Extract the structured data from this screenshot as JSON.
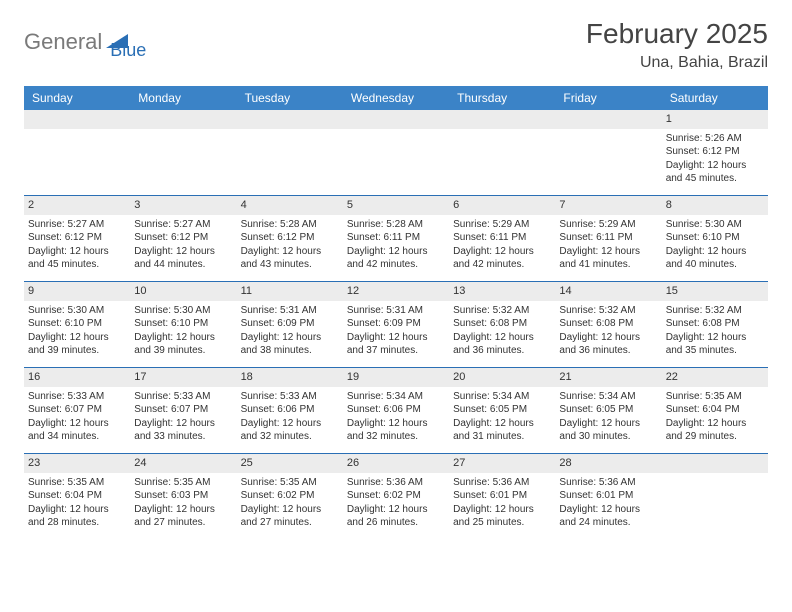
{
  "logo": {
    "gray": "General",
    "blue": "Blue"
  },
  "title": "February 2025",
  "location": "Una, Bahia, Brazil",
  "colors": {
    "header_bg": "#3b83c7",
    "header_text": "#ffffff",
    "daynum_bg": "#ececec",
    "week_border": "#2a6fb5",
    "logo_gray": "#7a7a7a",
    "logo_blue": "#2a6fb5"
  },
  "weekdays": [
    "Sunday",
    "Monday",
    "Tuesday",
    "Wednesday",
    "Thursday",
    "Friday",
    "Saturday"
  ],
  "weeks": [
    [
      null,
      null,
      null,
      null,
      null,
      null,
      {
        "n": "1",
        "sr": "5:26 AM",
        "ss": "6:12 PM",
        "dl": "12 hours and 45 minutes."
      }
    ],
    [
      {
        "n": "2",
        "sr": "5:27 AM",
        "ss": "6:12 PM",
        "dl": "12 hours and 45 minutes."
      },
      {
        "n": "3",
        "sr": "5:27 AM",
        "ss": "6:12 PM",
        "dl": "12 hours and 44 minutes."
      },
      {
        "n": "4",
        "sr": "5:28 AM",
        "ss": "6:12 PM",
        "dl": "12 hours and 43 minutes."
      },
      {
        "n": "5",
        "sr": "5:28 AM",
        "ss": "6:11 PM",
        "dl": "12 hours and 42 minutes."
      },
      {
        "n": "6",
        "sr": "5:29 AM",
        "ss": "6:11 PM",
        "dl": "12 hours and 42 minutes."
      },
      {
        "n": "7",
        "sr": "5:29 AM",
        "ss": "6:11 PM",
        "dl": "12 hours and 41 minutes."
      },
      {
        "n": "8",
        "sr": "5:30 AM",
        "ss": "6:10 PM",
        "dl": "12 hours and 40 minutes."
      }
    ],
    [
      {
        "n": "9",
        "sr": "5:30 AM",
        "ss": "6:10 PM",
        "dl": "12 hours and 39 minutes."
      },
      {
        "n": "10",
        "sr": "5:30 AM",
        "ss": "6:10 PM",
        "dl": "12 hours and 39 minutes."
      },
      {
        "n": "11",
        "sr": "5:31 AM",
        "ss": "6:09 PM",
        "dl": "12 hours and 38 minutes."
      },
      {
        "n": "12",
        "sr": "5:31 AM",
        "ss": "6:09 PM",
        "dl": "12 hours and 37 minutes."
      },
      {
        "n": "13",
        "sr": "5:32 AM",
        "ss": "6:08 PM",
        "dl": "12 hours and 36 minutes."
      },
      {
        "n": "14",
        "sr": "5:32 AM",
        "ss": "6:08 PM",
        "dl": "12 hours and 36 minutes."
      },
      {
        "n": "15",
        "sr": "5:32 AM",
        "ss": "6:08 PM",
        "dl": "12 hours and 35 minutes."
      }
    ],
    [
      {
        "n": "16",
        "sr": "5:33 AM",
        "ss": "6:07 PM",
        "dl": "12 hours and 34 minutes."
      },
      {
        "n": "17",
        "sr": "5:33 AM",
        "ss": "6:07 PM",
        "dl": "12 hours and 33 minutes."
      },
      {
        "n": "18",
        "sr": "5:33 AM",
        "ss": "6:06 PM",
        "dl": "12 hours and 32 minutes."
      },
      {
        "n": "19",
        "sr": "5:34 AM",
        "ss": "6:06 PM",
        "dl": "12 hours and 32 minutes."
      },
      {
        "n": "20",
        "sr": "5:34 AM",
        "ss": "6:05 PM",
        "dl": "12 hours and 31 minutes."
      },
      {
        "n": "21",
        "sr": "5:34 AM",
        "ss": "6:05 PM",
        "dl": "12 hours and 30 minutes."
      },
      {
        "n": "22",
        "sr": "5:35 AM",
        "ss": "6:04 PM",
        "dl": "12 hours and 29 minutes."
      }
    ],
    [
      {
        "n": "23",
        "sr": "5:35 AM",
        "ss": "6:04 PM",
        "dl": "12 hours and 28 minutes."
      },
      {
        "n": "24",
        "sr": "5:35 AM",
        "ss": "6:03 PM",
        "dl": "12 hours and 27 minutes."
      },
      {
        "n": "25",
        "sr": "5:35 AM",
        "ss": "6:02 PM",
        "dl": "12 hours and 27 minutes."
      },
      {
        "n": "26",
        "sr": "5:36 AM",
        "ss": "6:02 PM",
        "dl": "12 hours and 26 minutes."
      },
      {
        "n": "27",
        "sr": "5:36 AM",
        "ss": "6:01 PM",
        "dl": "12 hours and 25 minutes."
      },
      {
        "n": "28",
        "sr": "5:36 AM",
        "ss": "6:01 PM",
        "dl": "12 hours and 24 minutes."
      },
      null
    ]
  ],
  "labels": {
    "sunrise": "Sunrise: ",
    "sunset": "Sunset: ",
    "daylight": "Daylight: "
  }
}
